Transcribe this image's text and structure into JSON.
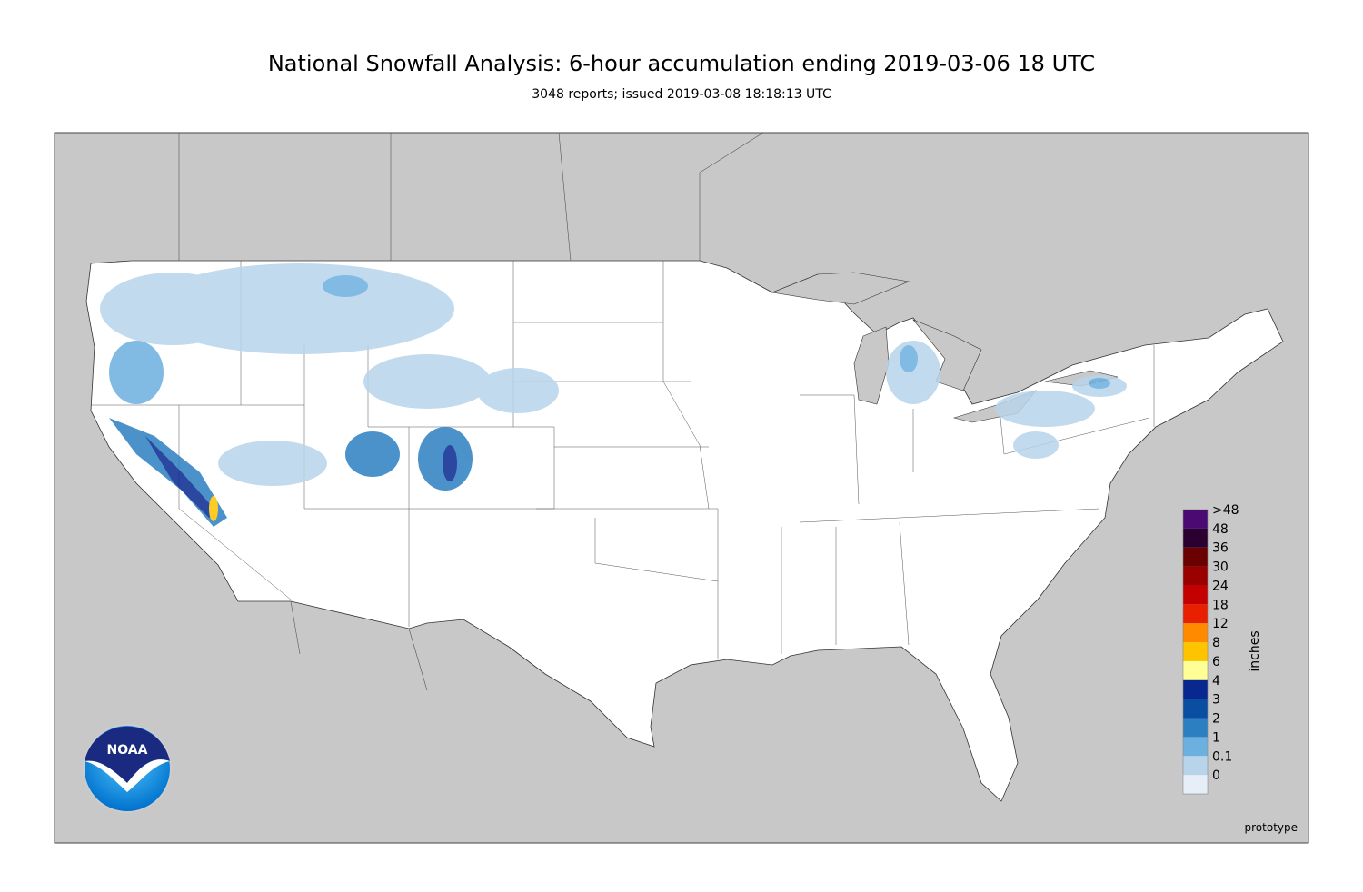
{
  "header": {
    "title": "National Snowfall Analysis: 6-hour accumulation ending 2019-03-06 18 UTC",
    "subtitle": "3048 reports; issued 2019-03-08 18:18:13 UTC"
  },
  "legend": {
    "title": "inches",
    "entries": [
      {
        "label": ">48",
        "color": "#4a0a72"
      },
      {
        "label": "48",
        "color": "#2a0030"
      },
      {
        "label": "36",
        "color": "#6a0000"
      },
      {
        "label": "30",
        "color": "#9a0000"
      },
      {
        "label": "24",
        "color": "#c40000"
      },
      {
        "label": "18",
        "color": "#e82000"
      },
      {
        "label": "12",
        "color": "#ff8a00"
      },
      {
        "label": "8",
        "color": "#ffc400"
      },
      {
        "label": "6",
        "color": "#ffff96"
      },
      {
        "label": "4",
        "color": "#082890"
      },
      {
        "label": "3",
        "color": "#0a4ea2"
      },
      {
        "label": "2",
        "color": "#2c80c2"
      },
      {
        "label": "1",
        "color": "#6cb0e0"
      },
      {
        "label": "0.1",
        "color": "#b8d4ea"
      },
      {
        "label": "0",
        "color": "#e6eff8"
      }
    ]
  },
  "logo": {
    "text": "NOAA"
  },
  "note": "prototype"
}
